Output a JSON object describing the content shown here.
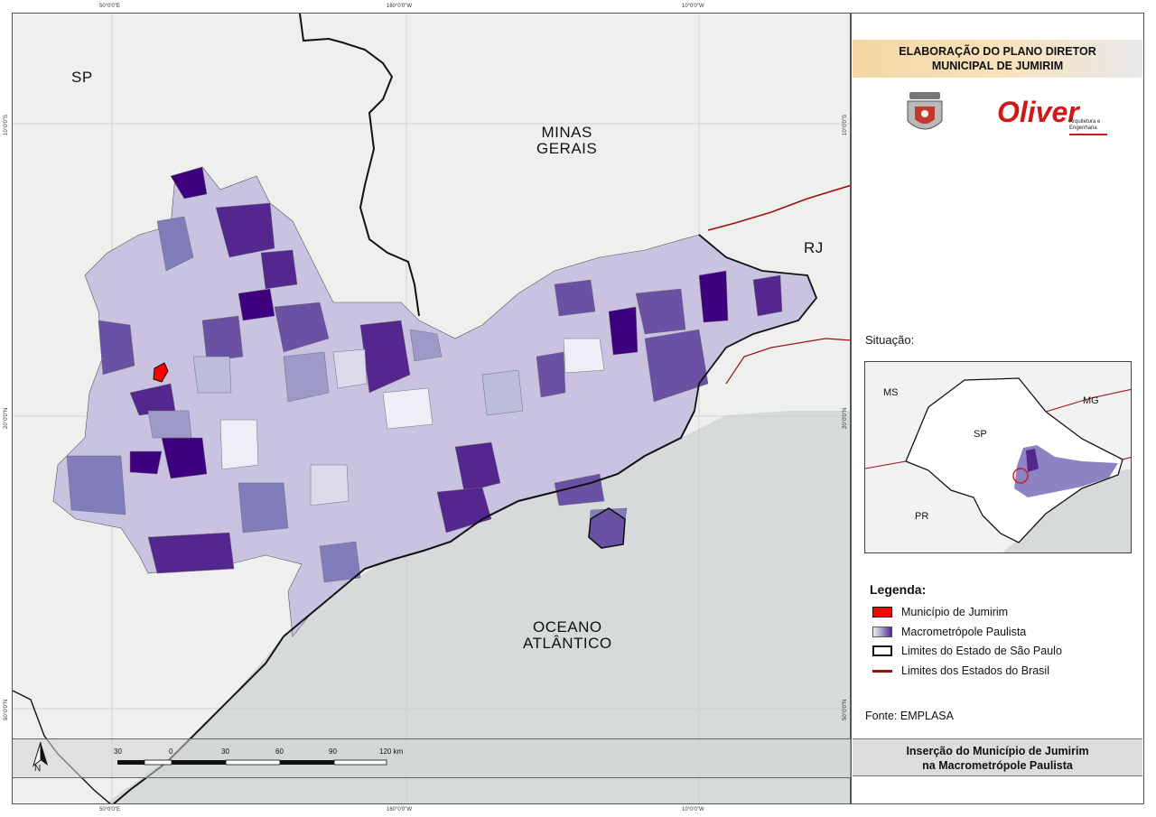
{
  "map": {
    "labels": {
      "sp": "SP",
      "minas_gerais": "MINAS\nGERAIS",
      "rj": "RJ",
      "oceano": "OCEANO\nATLÂNTICO"
    },
    "coords": {
      "top_left": "50°0'0\"E",
      "top_mid": "160°0'0\"W",
      "top_right": "10°0'0\"W",
      "bottom_left": "50°0'0\"E",
      "bottom_mid": "160°0'0\"W",
      "bottom_right": "10°0'0\"W",
      "left_top": "10°0'0\"S",
      "left_mid": "20°0'0\"N",
      "left_bottom": "50°0'0\"N",
      "right_top": "10°0'0\"S",
      "right_mid": "20°0'0\"N",
      "right_bottom": "50°0'0\"N"
    },
    "north_label": "N",
    "scale": {
      "ticks": [
        "30",
        "0",
        "30",
        "60",
        "90",
        "120 km"
      ]
    }
  },
  "panel": {
    "title_line1": "ELABORAÇÃO DO PLANO DIRETOR",
    "title_line2": "MUNICIPAL DE JUMIRIM",
    "logo_brand": "Oliver",
    "logo_sub1": "Arquitetura e",
    "logo_sub2": "Engenharia",
    "situacao": "Situação:",
    "situ_labels": {
      "ms": "MS",
      "mg": "MG",
      "sp": "SP",
      "pr": "PR"
    },
    "legend_title": "Legenda:",
    "legend": [
      {
        "label": "Município de Jumirim",
        "color": "#ff0000"
      },
      {
        "label": "Macrometrópole Paulista",
        "color": "#6a51a3"
      },
      {
        "label": "Limites do Estado de São Paulo",
        "color": "#000000"
      },
      {
        "label": "Limites dos Estados do Brasil",
        "color": "#9b1010"
      }
    ],
    "fonte": "Fonte: EMPLASA",
    "footer_line1": "Inserção do Município de Jumirim",
    "footer_line2": "na Macrometrópole Paulista"
  }
}
